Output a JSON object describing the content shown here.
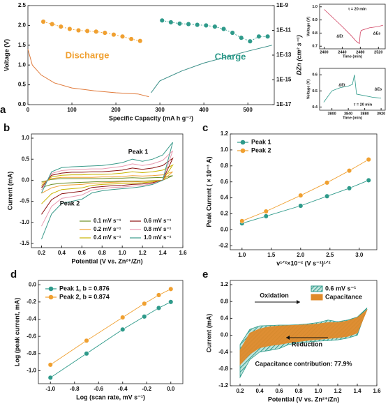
{
  "chart_data": [
    {
      "type": "line",
      "panel_label": "a",
      "x_label": "Specific Capacity (mA h g⁻¹)",
      "y_label": "Voltage (V)",
      "y2_label": "DZn (cm² s⁻¹)",
      "xlim": [
        0,
        560
      ],
      "xticks": [
        0,
        100,
        200,
        300,
        400,
        500
      ],
      "ylim": [
        0,
        2.5
      ],
      "yticks": [
        {
          "value": 0,
          "label": "0.0"
        },
        0.5,
        {
          "value": 1,
          "label": "1.0"
        },
        1.5,
        {
          "value": 2,
          "label": "2.0"
        },
        2.5
      ],
      "y2lim": [
        1e-17,
        1e-09
      ],
      "y2scale": "log",
      "y2ticks": [
        {
          "value": 1e-09,
          "label": "1E-9"
        },
        {
          "value": 1e-11,
          "label": "1E-11"
        },
        {
          "value": 1e-13,
          "label": "1E-13"
        },
        {
          "value": 1e-15,
          "label": "1E-15"
        },
        {
          "value": 1e-17,
          "label": "1E-17"
        }
      ],
      "annotations": [
        "Discharge",
        "Charge"
      ],
      "series": [
        {
          "color": "#e07a3a",
          "x": [
            0,
            10,
            30,
            60,
            100,
            150,
            200,
            250,
            275
          ],
          "values": [
            1.4,
            1.0,
            0.75,
            0.55,
            0.42,
            0.35,
            0.3,
            0.27,
            0.2
          ]
        },
        {
          "color": "#3a8f88",
          "x": [
            280,
            300,
            350,
            400,
            450,
            500,
            555
          ],
          "values": [
            0.3,
            0.6,
            0.85,
            1.05,
            1.2,
            1.35,
            1.5
          ]
        },
        {
          "color": "#f0a030",
          "axis": "y2",
          "marker": "circle",
          "x": [
            35,
            55,
            75,
            95,
            115,
            135,
            155,
            175,
            195,
            215,
            235,
            255
          ],
          "values": [
            5e-11,
            3.2e-11,
            2e-11,
            1.3e-11,
            1e-11,
            8.9e-12,
            7.9e-12,
            6.3e-12,
            4.5e-12,
            3.2e-12,
            2e-12,
            1.4e-12
          ]
        },
        {
          "color": "#2e9a8a",
          "axis": "y2",
          "marker": "circle",
          "x": [
            305,
            325,
            345,
            365,
            385,
            405,
            425,
            445,
            465,
            485,
            505,
            525,
            545
          ],
          "values": [
            6.3e-11,
            4.5e-11,
            3.5e-11,
            3.2e-11,
            2.8e-11,
            2.5e-11,
            2e-11,
            1.3e-11,
            6.3e-12,
            2.5e-12,
            1.3e-12,
            3.2e-12,
            3.2e-12
          ]
        }
      ]
    },
    {
      "type": "line",
      "x_label": "Time (min)",
      "y_label": "Voltage (V)",
      "xlim": [
        2390,
        2535
      ],
      "xticks": [
        2400,
        2440,
        2480,
        2520
      ],
      "ylim": [
        0.68,
        1.02
      ],
      "yticks": [
        0.7,
        0.8,
        0.9,
        {
          "value": 1,
          "label": "1.0"
        }
      ],
      "annotations": [
        "τ = 20 min",
        "ΔEt",
        "ΔEs"
      ],
      "series": [
        {
          "color": "#d04060",
          "x": [
            2400,
            2440,
            2460,
            2470,
            2478,
            2480,
            2482,
            2500,
            2520,
            2530
          ],
          "values": [
            0.98,
            0.85,
            0.78,
            0.74,
            0.72,
            0.8,
            0.82,
            0.84,
            0.85,
            0.86
          ]
        }
      ]
    },
    {
      "type": "line",
      "x_label": "Time (min)",
      "y_label": "Voltage (V)",
      "xlim": [
        3770,
        3930
      ],
      "xticks": [
        3800,
        3840,
        3880,
        3920
      ],
      "ylim": [
        0.38,
        0.64
      ],
      "yticks": [
        0.4,
        0.5,
        0.6
      ],
      "annotations": [
        "ΔEt",
        "τ = 20 min",
        "ΔEs"
      ],
      "series": [
        {
          "color": "#2e9a8a",
          "x": [
            3780,
            3800,
            3820,
            3840,
            3850,
            3855,
            3860,
            3880,
            3900,
            3920
          ],
          "values": [
            0.43,
            0.5,
            0.52,
            0.53,
            0.54,
            0.6,
            0.48,
            0.47,
            0.46,
            0.455
          ]
        }
      ]
    },
    {
      "type": "line",
      "panel_label": "b",
      "x_label": "Potential (V vs. Zn²⁺/Zn)",
      "y_label": "Current (mA)",
      "legend": "lower right",
      "xlim": [
        0.1,
        1.6
      ],
      "xticks": [
        0.2,
        0.4,
        0.6,
        0.8,
        {
          "value": 1,
          "label": "1.0"
        },
        1.2,
        1.4,
        1.6
      ],
      "ylim": [
        -1.6,
        1.1
      ],
      "yticks": [
        -1.5,
        {
          "value": -1,
          "label": "-1.0"
        },
        -0.5,
        {
          "value": 0,
          "label": "0.0"
        },
        0.5,
        {
          "value": 1,
          "label": "1.0"
        }
      ],
      "annotations": [
        "Peak 1",
        "Peak 2"
      ],
      "x": [
        0.2,
        0.3,
        0.4,
        0.5,
        0.6,
        0.7,
        0.8,
        0.9,
        1.0,
        1.1,
        1.2,
        1.3,
        1.4,
        1.5,
        1.4,
        1.3,
        1.2,
        1.1,
        1.0,
        0.9,
        0.8,
        0.7,
        0.6,
        0.5,
        0.4,
        0.3,
        0.2
      ],
      "series": [
        {
          "name": "0.1 mV s⁻¹",
          "color": "#6b8e23",
          "values": [
            -0.04,
            0.02,
            0.04,
            0.04,
            0.04,
            0.04,
            0.04,
            0.05,
            0.05,
            0.06,
            0.05,
            0.06,
            0.07,
            0.11,
            0.0,
            -0.01,
            -0.02,
            -0.02,
            -0.02,
            -0.03,
            -0.03,
            -0.04,
            -0.05,
            -0.06,
            -0.07,
            -0.1,
            -0.17
          ]
        },
        {
          "name": "0.2 mV s⁻¹",
          "color": "#f0a030",
          "values": [
            -0.07,
            0.04,
            0.07,
            0.07,
            0.07,
            0.07,
            0.08,
            0.08,
            0.09,
            0.11,
            0.1,
            0.11,
            0.13,
            0.2,
            0.0,
            -0.02,
            -0.03,
            -0.04,
            -0.04,
            -0.05,
            -0.06,
            -0.07,
            -0.1,
            -0.11,
            -0.12,
            -0.18,
            -0.31
          ]
        },
        {
          "name": "0.4 mV s⁻¹",
          "color": "#c8b400",
          "values": [
            -0.12,
            0.08,
            0.12,
            0.13,
            0.13,
            0.14,
            0.14,
            0.15,
            0.17,
            0.2,
            0.18,
            0.2,
            0.24,
            0.36,
            0.0,
            -0.04,
            -0.06,
            -0.07,
            -0.08,
            -0.09,
            -0.1,
            -0.12,
            -0.18,
            -0.2,
            -0.22,
            -0.32,
            -0.56
          ]
        },
        {
          "name": "0.6 mV s⁻¹",
          "color": "#8b1010",
          "values": [
            -0.17,
            0.12,
            0.17,
            0.19,
            0.19,
            0.2,
            0.2,
            0.22,
            0.24,
            0.29,
            0.26,
            0.29,
            0.35,
            0.52,
            0.0,
            -0.06,
            -0.09,
            -0.1,
            -0.12,
            -0.13,
            -0.15,
            -0.17,
            -0.26,
            -0.29,
            -0.32,
            -0.46,
            -0.81
          ]
        },
        {
          "name": "0.8 mV s⁻¹",
          "color": "#e89ab0",
          "values": [
            -0.23,
            0.16,
            0.23,
            0.25,
            0.26,
            0.27,
            0.27,
            0.3,
            0.33,
            0.39,
            0.35,
            0.39,
            0.47,
            0.7,
            0.0,
            -0.08,
            -0.12,
            -0.14,
            -0.16,
            -0.17,
            -0.2,
            -0.23,
            -0.35,
            -0.39,
            -0.43,
            -0.62,
            -1.09
          ]
        },
        {
          "name": "1.0 mV s⁻¹",
          "color": "#3a9a8a",
          "values": [
            -0.3,
            0.2,
            0.3,
            0.32,
            0.33,
            0.34,
            0.35,
            0.38,
            0.42,
            0.5,
            0.45,
            0.5,
            0.6,
            0.9,
            0.0,
            -0.1,
            -0.15,
            -0.18,
            -0.2,
            -0.22,
            -0.25,
            -0.3,
            -0.45,
            -0.5,
            -0.55,
            -0.8,
            -1.4
          ]
        }
      ]
    },
    {
      "type": "scatter",
      "panel_label": "c",
      "x_label": "v¹ᐟ²×10⁻² (V s⁻¹)¹ᐟ²",
      "y_label": "Peak Current ( × 10⁻³ A)",
      "legend": "upper left",
      "xlim": [
        0.8,
        3.3
      ],
      "xticks": [
        {
          "value": 1,
          "label": "1.0"
        },
        1.5,
        {
          "value": 2,
          "label": "2.0"
        },
        2.5,
        {
          "value": 3,
          "label": "3.0"
        }
      ],
      "ylim": [
        -0.25,
        1.2
      ],
      "yticks": [
        -0.2,
        {
          "value": 0,
          "label": "0.0"
        },
        0.2,
        0.4,
        0.6,
        0.8,
        {
          "value": 1,
          "label": "1.0"
        },
        1.2
      ],
      "x": [
        1.0,
        1.41,
        2.0,
        2.45,
        2.83,
        3.16
      ],
      "series": [
        {
          "name": "Peak 1",
          "color": "#2e9a8a",
          "values": [
            0.08,
            0.17,
            0.3,
            0.42,
            0.52,
            0.62
          ]
        },
        {
          "name": "Peak 2",
          "color": "#f0a030",
          "values": [
            0.11,
            0.23,
            0.43,
            0.59,
            0.74,
            0.88
          ]
        }
      ]
    },
    {
      "type": "scatter",
      "panel_label": "d",
      "x_label": "Log (scan rate, mV s⁻¹)",
      "y_label": "Log (peak current, mA)",
      "legend": "upper left",
      "xlim": [
        -1.1,
        0.1
      ],
      "xticks": [
        {
          "value": -1,
          "label": "-1.0"
        },
        -0.8,
        -0.6,
        -0.4,
        -0.2,
        {
          "value": 0,
          "label": "0.0"
        }
      ],
      "ylim": [
        -1.15,
        0.05
      ],
      "yticks": [
        {
          "value": -1,
          "label": "-1.0"
        },
        -0.8,
        -0.6,
        -0.4,
        -0.2,
        {
          "value": 0,
          "label": "0.0"
        }
      ],
      "x": [
        -1.0,
        -0.7,
        -0.4,
        -0.22,
        -0.1,
        0.0
      ],
      "series": [
        {
          "name": "Peak 1, b = 0.876",
          "color": "#2e9a8a",
          "values": [
            -1.08,
            -0.8,
            -0.52,
            -0.37,
            -0.27,
            -0.2
          ]
        },
        {
          "name": "Peak 2, b = 0.874",
          "color": "#f0a030",
          "values": [
            -0.93,
            -0.65,
            -0.38,
            -0.22,
            -0.12,
            -0.05
          ]
        }
      ]
    },
    {
      "type": "area",
      "panel_label": "e",
      "x_label": "Potential (V vs. Zn²⁺/Zn)",
      "y_label": "Current (mA)",
      "legend": "upper right",
      "xlim": [
        0.1,
        1.6
      ],
      "xticks": [
        0.2,
        0.4,
        0.6,
        0.8,
        {
          "value": 1,
          "label": "1.0"
        },
        1.2,
        1.4,
        1.6
      ],
      "ylim": [
        -1.2,
        1.3
      ],
      "yticks": [
        -1.2,
        -0.8,
        -0.4,
        {
          "value": 0,
          "label": "0.0"
        },
        0.4,
        0.8,
        1.2
      ],
      "annotations": [
        "Oxidation",
        "Reduction",
        "Capacitance contribution: 77.9%"
      ],
      "x": [
        0.2,
        0.3,
        0.4,
        0.5,
        0.6,
        0.7,
        0.8,
        0.9,
        1.0,
        1.1,
        1.2,
        1.3,
        1.4,
        1.5,
        1.4,
        1.3,
        1.2,
        1.1,
        1.0,
        0.9,
        0.8,
        0.7,
        0.6,
        0.5,
        0.4,
        0.3,
        0.2
      ],
      "series": [
        {
          "name": "0.6 mV s⁻¹",
          "color": "#2e9a8a",
          "hatch": true,
          "values": [
            -0.22,
            0.14,
            0.22,
            0.23,
            0.24,
            0.24,
            0.25,
            0.27,
            0.3,
            0.36,
            0.32,
            0.36,
            0.43,
            0.65,
            0.0,
            -0.07,
            -0.11,
            -0.13,
            -0.14,
            -0.16,
            -0.18,
            -0.22,
            -0.32,
            -0.36,
            -0.4,
            -0.58,
            -1.0
          ]
        },
        {
          "name": "Capacitance",
          "color": "#e08a2a",
          "values": [
            -0.35,
            0.05,
            0.15,
            0.2,
            0.22,
            0.23,
            0.24,
            0.25,
            0.27,
            0.3,
            0.3,
            0.34,
            0.42,
            0.6,
            0.05,
            -0.03,
            -0.06,
            -0.08,
            -0.1,
            -0.12,
            -0.15,
            -0.18,
            -0.22,
            -0.25,
            -0.3,
            -0.45,
            -0.7
          ]
        }
      ]
    }
  ]
}
